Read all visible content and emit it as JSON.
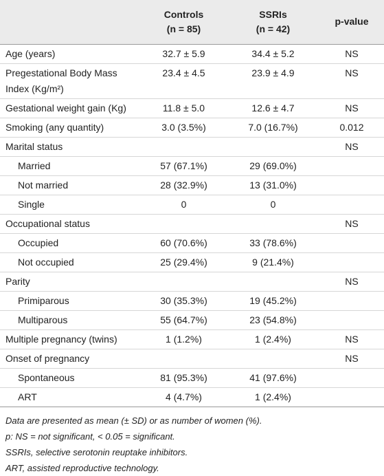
{
  "table": {
    "header": [
      [
        "Controls",
        "(n = 85)"
      ],
      [
        "SSRIs",
        "(n = 42)"
      ],
      [
        "p-value"
      ]
    ],
    "rows": [
      {
        "label": "Age (years)",
        "controls": "32.7 ± 5.9",
        "ssris": "34.4 ± 5.2",
        "p": "NS"
      },
      {
        "label": "Pregestational Body Mass Index (Kg/m²)",
        "controls": "23.4 ± 4.5",
        "ssris": "23.9 ± 4.9",
        "p": "NS"
      },
      {
        "label": "Gestational weight gain (Kg)",
        "controls": "11.8 ± 5.0",
        "ssris": "12.6 ± 4.7",
        "p": "NS"
      },
      {
        "label": "Smoking (any quantity)",
        "controls": "3.0 (3.5%)",
        "ssris": "7.0 (16.7%)",
        "p": "0.012"
      },
      {
        "label": "Marital status",
        "p": "NS",
        "items": [
          {
            "label": "Married",
            "controls": "57 (67.1%)",
            "ssris": "29 (69.0%)"
          },
          {
            "label": "Not married",
            "controls": "28 (32.9%)",
            "ssris": "13 (31.0%)"
          },
          {
            "label": "Single",
            "controls": "0",
            "ssris": "0"
          }
        ]
      },
      {
        "label": "Occupational status",
        "p": "NS",
        "items": [
          {
            "label": "Occupied",
            "controls": "60 (70.6%)",
            "ssris": "33 (78.6%)"
          },
          {
            "label": "Not occupied",
            "controls": "25 (29.4%)",
            "ssris": "9 (21.4%)"
          }
        ]
      },
      {
        "label": "Parity",
        "p": "NS",
        "items": [
          {
            "label": "Primiparous",
            "controls": "30 (35.3%)",
            "ssris": "19 (45.2%)"
          },
          {
            "label": "Multiparous",
            "controls": "55 (64.7%)",
            "ssris": "23 (54.8%)"
          }
        ]
      },
      {
        "label": "Multiple pregnancy (twins)",
        "controls": "1 (1.2%)",
        "ssris": "1 (2.4%)",
        "p": "NS"
      },
      {
        "label": "Onset of pregnancy",
        "p": "NS",
        "items": [
          {
            "label": "Spontaneous",
            "controls": "81 (95.3%)",
            "ssris": "41 (97.6%)"
          },
          {
            "label": "ART",
            "controls": "4 (4.7%)",
            "ssris": "1 (2.4%)"
          }
        ]
      }
    ],
    "notes": [
      "Data are presented as mean (± SD) or as number of women (%).",
      "p: NS = not significant, < 0.05 = significant.",
      "SSRIs, selective serotonin reuptake inhibitors.",
      "ART, assisted reproductive technology."
    ]
  }
}
